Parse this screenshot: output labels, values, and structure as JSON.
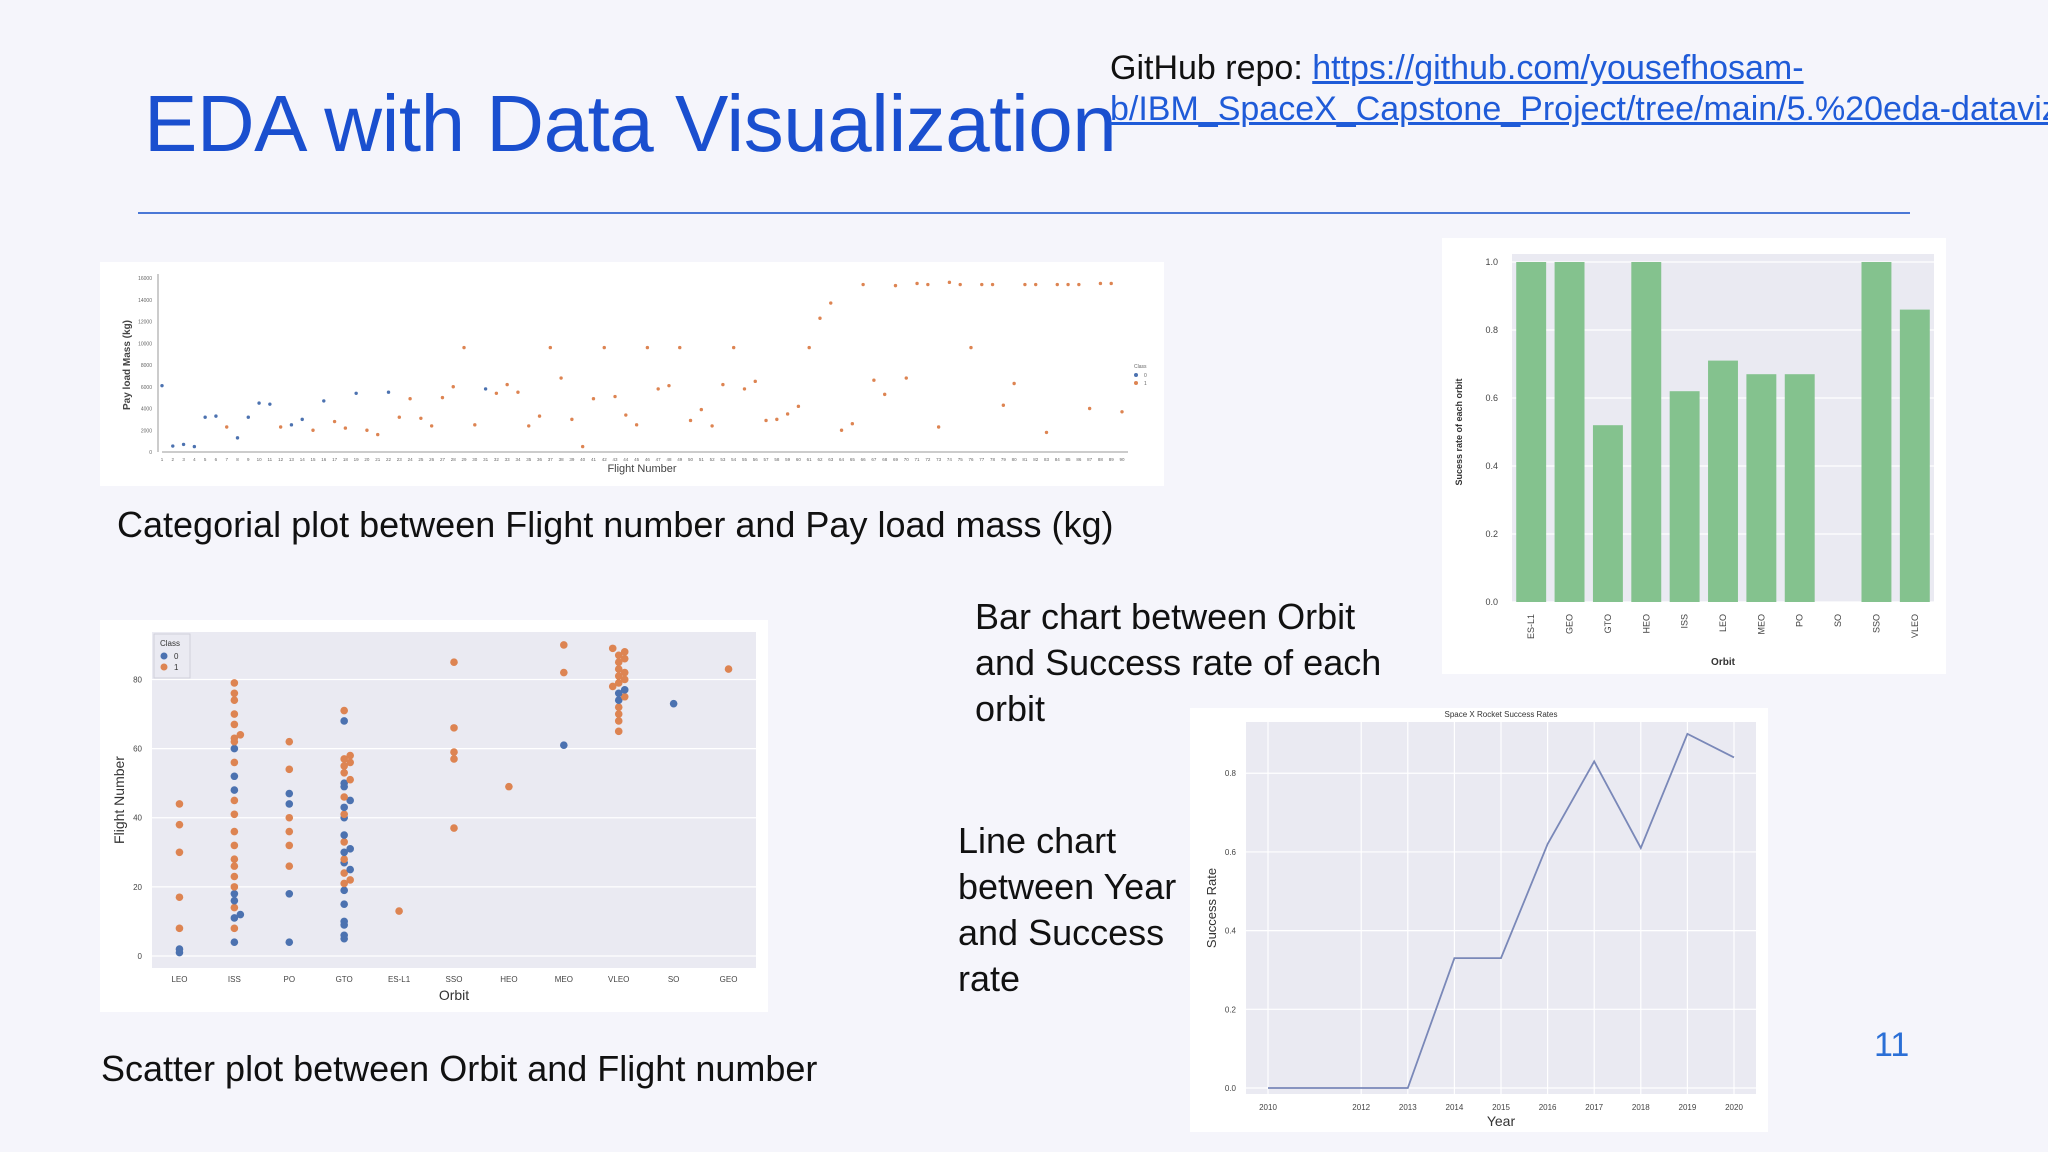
{
  "slide": {
    "title": "EDA with Data Visualization",
    "repo_label": "GitHub repo: ",
    "repo_link_line1": "https://github.com/yousefhosam-",
    "repo_link_line2": "b/IBM_SpaceX_Capstone_Project/tree/main/5.%20eda-dataviz",
    "page_number": "11"
  },
  "captions": {
    "catplot": "Categorial plot between Flight number and Pay load mass (kg)",
    "scatter": "Scatter plot between Orbit and Flight number",
    "bar_line1": "Bar chart between Orbit",
    "bar_line2": "and Success rate of each",
    "bar_line3": "orbit",
    "line_line1": "Line chart",
    "line_line2": "between Year",
    "line_line3": "and Success",
    "line_line4": "rate"
  },
  "colors": {
    "class0": "#4c72b0",
    "class1": "#dd8452",
    "bar": "#84c28e",
    "line": "#7a88b8",
    "accent": "#1a4fcf"
  },
  "chart_data": [
    {
      "id": "catplot",
      "type": "scatter",
      "xlabel": "Flight Number",
      "ylabel": "Pay load Mass (kg)",
      "xlim": [
        1,
        90
      ],
      "ylim": [
        0,
        16000
      ],
      "yticks": [
        0,
        2000,
        4000,
        6000,
        8000,
        10000,
        12000,
        14000,
        16000
      ],
      "legend_title": "Class",
      "legend_labels": [
        "0",
        "1"
      ],
      "points": [
        [
          1,
          6100,
          0
        ],
        [
          2,
          550,
          0
        ],
        [
          3,
          700,
          0
        ],
        [
          4,
          500,
          0
        ],
        [
          5,
          3200,
          0
        ],
        [
          6,
          3300,
          0
        ],
        [
          7,
          2300,
          1
        ],
        [
          8,
          1300,
          0
        ],
        [
          9,
          3200,
          0
        ],
        [
          10,
          4500,
          0
        ],
        [
          11,
          4400,
          0
        ],
        [
          12,
          2300,
          1
        ],
        [
          13,
          2500,
          0
        ],
        [
          14,
          3000,
          0
        ],
        [
          15,
          2000,
          1
        ],
        [
          16,
          4700,
          0
        ],
        [
          17,
          2800,
          1
        ],
        [
          18,
          2200,
          1
        ],
        [
          19,
          5400,
          0
        ],
        [
          20,
          2000,
          1
        ],
        [
          21,
          1600,
          1
        ],
        [
          22,
          5500,
          0
        ],
        [
          23,
          3200,
          1
        ],
        [
          24,
          4900,
          1
        ],
        [
          25,
          3100,
          1
        ],
        [
          26,
          2400,
          1
        ],
        [
          27,
          5000,
          1
        ],
        [
          28,
          6000,
          1
        ],
        [
          29,
          9600,
          1
        ],
        [
          30,
          2500,
          1
        ],
        [
          31,
          5800,
          0
        ],
        [
          32,
          5400,
          1
        ],
        [
          33,
          6200,
          1
        ],
        [
          34,
          5500,
          1
        ],
        [
          35,
          2400,
          1
        ],
        [
          36,
          3300,
          1
        ],
        [
          37,
          9600,
          1
        ],
        [
          38,
          6800,
          1
        ],
        [
          39,
          3000,
          1
        ],
        [
          40,
          500,
          1
        ],
        [
          41,
          4900,
          1
        ],
        [
          42,
          9600,
          1
        ],
        [
          43,
          5100,
          1
        ],
        [
          44,
          3400,
          1
        ],
        [
          45,
          2500,
          1
        ],
        [
          46,
          9600,
          1
        ],
        [
          47,
          5800,
          1
        ],
        [
          48,
          6100,
          1
        ],
        [
          49,
          9600,
          1
        ],
        [
          50,
          2900,
          1
        ],
        [
          51,
          3900,
          1
        ],
        [
          52,
          2400,
          1
        ],
        [
          53,
          6200,
          1
        ],
        [
          54,
          9600,
          1
        ],
        [
          55,
          5800,
          1
        ],
        [
          56,
          6500,
          1
        ],
        [
          57,
          2900,
          1
        ],
        [
          58,
          3000,
          1
        ],
        [
          59,
          3500,
          1
        ],
        [
          60,
          4200,
          1
        ],
        [
          61,
          9600,
          1
        ],
        [
          62,
          12300,
          1
        ],
        [
          63,
          13700,
          1
        ],
        [
          64,
          2000,
          1
        ],
        [
          65,
          2600,
          1
        ],
        [
          66,
          15400,
          1
        ],
        [
          67,
          6600,
          1
        ],
        [
          68,
          5300,
          1
        ],
        [
          69,
          15300,
          1
        ],
        [
          70,
          6800,
          1
        ],
        [
          71,
          15500,
          1
        ],
        [
          72,
          15400,
          1
        ],
        [
          73,
          2300,
          1
        ],
        [
          74,
          15600,
          1
        ],
        [
          75,
          15400,
          1
        ],
        [
          76,
          9600,
          1
        ],
        [
          77,
          15400,
          1
        ],
        [
          78,
          15400,
          1
        ],
        [
          79,
          4300,
          1
        ],
        [
          80,
          6300,
          1
        ],
        [
          81,
          15400,
          1
        ],
        [
          82,
          15400,
          1
        ],
        [
          83,
          1800,
          1
        ],
        [
          84,
          15400,
          1
        ],
        [
          85,
          15400,
          1
        ],
        [
          86,
          15400,
          1
        ],
        [
          87,
          4000,
          1
        ],
        [
          88,
          15500,
          1
        ],
        [
          89,
          15500,
          1
        ],
        [
          90,
          3700,
          1
        ]
      ]
    },
    {
      "id": "scatter",
      "type": "scatter",
      "xlabel": "Orbit",
      "ylabel": "Flight Number",
      "categories": [
        "LEO",
        "ISS",
        "PO",
        "GTO",
        "ES-L1",
        "SSO",
        "HEO",
        "MEO",
        "VLEO",
        "SO",
        "GEO"
      ],
      "ylim": [
        0,
        92
      ],
      "yticks": [
        0,
        20,
        40,
        60,
        80
      ],
      "legend_title": "Class",
      "legend_labels": [
        "0",
        "1"
      ],
      "points": [
        [
          "LEO",
          2,
          0
        ],
        [
          "LEO",
          1,
          0
        ],
        [
          "LEO",
          8,
          1
        ],
        [
          "LEO",
          17,
          1
        ],
        [
          "LEO",
          30,
          1
        ],
        [
          "LEO",
          38,
          1
        ],
        [
          "LEO",
          44,
          1
        ],
        [
          "ISS",
          4,
          0
        ],
        [
          "ISS",
          8,
          1
        ],
        [
          "ISS",
          11,
          0
        ],
        [
          "ISS",
          12,
          0
        ],
        [
          "ISS",
          14,
          1
        ],
        [
          "ISS",
          16,
          0
        ],
        [
          "ISS",
          18,
          0
        ],
        [
          "ISS",
          20,
          1
        ],
        [
          "ISS",
          23,
          1
        ],
        [
          "ISS",
          26,
          1
        ],
        [
          "ISS",
          28,
          1
        ],
        [
          "ISS",
          32,
          1
        ],
        [
          "ISS",
          36,
          1
        ],
        [
          "ISS",
          41,
          1
        ],
        [
          "ISS",
          45,
          1
        ],
        [
          "ISS",
          48,
          0
        ],
        [
          "ISS",
          52,
          0
        ],
        [
          "ISS",
          56,
          1
        ],
        [
          "ISS",
          60,
          0
        ],
        [
          "ISS",
          62,
          1
        ],
        [
          "ISS",
          63,
          1
        ],
        [
          "ISS",
          64,
          1
        ],
        [
          "ISS",
          67,
          1
        ],
        [
          "ISS",
          70,
          1
        ],
        [
          "ISS",
          74,
          1
        ],
        [
          "ISS",
          76,
          1
        ],
        [
          "ISS",
          79,
          1
        ],
        [
          "PO",
          4,
          0
        ],
        [
          "PO",
          18,
          0
        ],
        [
          "PO",
          26,
          1
        ],
        [
          "PO",
          32,
          1
        ],
        [
          "PO",
          36,
          1
        ],
        [
          "PO",
          40,
          1
        ],
        [
          "PO",
          44,
          0
        ],
        [
          "PO",
          47,
          0
        ],
        [
          "PO",
          54,
          1
        ],
        [
          "PO",
          62,
          1
        ],
        [
          "GTO",
          5,
          0
        ],
        [
          "GTO",
          6,
          0
        ],
        [
          "GTO",
          9,
          0
        ],
        [
          "GTO",
          10,
          0
        ],
        [
          "GTO",
          15,
          0
        ],
        [
          "GTO",
          19,
          0
        ],
        [
          "GTO",
          21,
          1
        ],
        [
          "GTO",
          22,
          1
        ],
        [
          "GTO",
          24,
          1
        ],
        [
          "GTO",
          25,
          0
        ],
        [
          "GTO",
          27,
          0
        ],
        [
          "GTO",
          28,
          1
        ],
        [
          "GTO",
          30,
          0
        ],
        [
          "GTO",
          31,
          0
        ],
        [
          "GTO",
          33,
          1
        ],
        [
          "GTO",
          35,
          0
        ],
        [
          "GTO",
          40,
          0
        ],
        [
          "GTO",
          41,
          1
        ],
        [
          "GTO",
          43,
          0
        ],
        [
          "GTO",
          45,
          0
        ],
        [
          "GTO",
          46,
          1
        ],
        [
          "GTO",
          49,
          0
        ],
        [
          "GTO",
          50,
          0
        ],
        [
          "GTO",
          51,
          1
        ],
        [
          "GTO",
          53,
          1
        ],
        [
          "GTO",
          55,
          1
        ],
        [
          "GTO",
          56,
          1
        ],
        [
          "GTO",
          57,
          1
        ],
        [
          "GTO",
          58,
          1
        ],
        [
          "GTO",
          68,
          0
        ],
        [
          "GTO",
          71,
          1
        ],
        [
          "ES-L1",
          13,
          1
        ],
        [
          "SSO",
          37,
          1
        ],
        [
          "SSO",
          57,
          1
        ],
        [
          "SSO",
          59,
          1
        ],
        [
          "SSO",
          66,
          1
        ],
        [
          "SSO",
          85,
          1
        ],
        [
          "HEO",
          49,
          1
        ],
        [
          "MEO",
          61,
          0
        ],
        [
          "MEO",
          82,
          1
        ],
        [
          "MEO",
          90,
          1
        ],
        [
          "VLEO",
          65,
          1
        ],
        [
          "VLEO",
          68,
          1
        ],
        [
          "VLEO",
          70,
          1
        ],
        [
          "VLEO",
          72,
          1
        ],
        [
          "VLEO",
          74,
          0
        ],
        [
          "VLEO",
          75,
          1
        ],
        [
          "VLEO",
          76,
          0
        ],
        [
          "VLEO",
          77,
          0
        ],
        [
          "VLEO",
          78,
          1
        ],
        [
          "VLEO",
          79,
          1
        ],
        [
          "VLEO",
          80,
          1
        ],
        [
          "VLEO",
          81,
          1
        ],
        [
          "VLEO",
          82,
          1
        ],
        [
          "VLEO",
          83,
          1
        ],
        [
          "VLEO",
          85,
          1
        ],
        [
          "VLEO",
          86,
          1
        ],
        [
          "VLEO",
          87,
          1
        ],
        [
          "VLEO",
          88,
          1
        ],
        [
          "VLEO",
          89,
          1
        ],
        [
          "SO",
          73,
          0
        ],
        [
          "GEO",
          83,
          1
        ]
      ]
    },
    {
      "id": "bar",
      "type": "bar",
      "xlabel": "Orbit",
      "ylabel": "Sucess rate of each orbit",
      "categories": [
        "ES-L1",
        "GEO",
        "GTO",
        "HEO",
        "ISS",
        "LEO",
        "MEO",
        "PO",
        "SO",
        "SSO",
        "VLEO"
      ],
      "values": [
        1.0,
        1.0,
        0.52,
        1.0,
        0.62,
        0.71,
        0.67,
        0.67,
        0.0,
        1.0,
        0.86
      ],
      "ylim": [
        0,
        1.0
      ],
      "yticks": [
        0.0,
        0.2,
        0.4,
        0.6,
        0.8,
        1.0
      ]
    },
    {
      "id": "line",
      "type": "line",
      "title": "Space X Rocket Success Rates",
      "xlabel": "Year",
      "ylabel": "Success Rate",
      "x": [
        2010,
        2012,
        2013,
        2014,
        2015,
        2016,
        2017,
        2018,
        2019,
        2020
      ],
      "values": [
        0.0,
        0.0,
        0.0,
        0.33,
        0.33,
        0.62,
        0.83,
        0.61,
        0.9,
        0.84
      ],
      "ylim": [
        0,
        0.92
      ],
      "yticks": [
        0.0,
        0.2,
        0.4,
        0.6,
        0.8
      ]
    }
  ]
}
